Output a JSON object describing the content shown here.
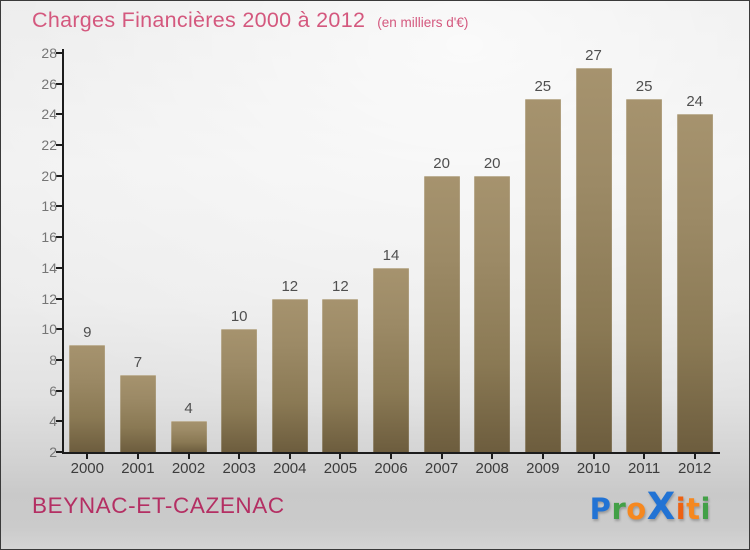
{
  "header": {
    "title": "Charges Financières 2000 à 2012",
    "subtitle": "(en milliers d'€)"
  },
  "footer": {
    "commune": "BEYNAC-ET-CAZENAC",
    "logo_text": "ProXiti",
    "logo_letters": [
      {
        "ch": "P",
        "color": "#2273d4",
        "big": false
      },
      {
        "ch": "r",
        "color": "#43a047",
        "big": false
      },
      {
        "ch": "o",
        "color": "#f6881f",
        "big": false
      },
      {
        "ch": "X",
        "color": "#2273d4",
        "big": true
      },
      {
        "ch": "i",
        "color": "#ee6111",
        "big": false
      },
      {
        "ch": "t",
        "color": "#f6881f",
        "big": false
      },
      {
        "ch": "i",
        "color": "#43a047",
        "big": false
      }
    ]
  },
  "colors": {
    "title": "#d4587e",
    "commune": "#b42f63",
    "axis": "#1c1c1c",
    "bar_top": "#a6936e",
    "bar_bottom": "#6d5d3e",
    "value_label": "#4f4f4f",
    "xtick_label": "#3c3c3c",
    "ytick_label": "#757575"
  },
  "chart_data": {
    "type": "bar",
    "title": "Charges Financières 2000 à 2012",
    "units_note": "(en milliers d'€)",
    "categories": [
      "2000",
      "2001",
      "2002",
      "2003",
      "2004",
      "2005",
      "2006",
      "2007",
      "2008",
      "2009",
      "2010",
      "2011",
      "2012"
    ],
    "values": [
      9,
      7,
      4,
      10,
      12,
      12,
      14,
      20,
      20,
      25,
      27,
      25,
      24
    ],
    "xlabel": "",
    "ylabel": "",
    "ylim": [
      2,
      28
    ],
    "ytick_step": 2,
    "grid": false,
    "legend": false,
    "value_labels_shown": true
  }
}
